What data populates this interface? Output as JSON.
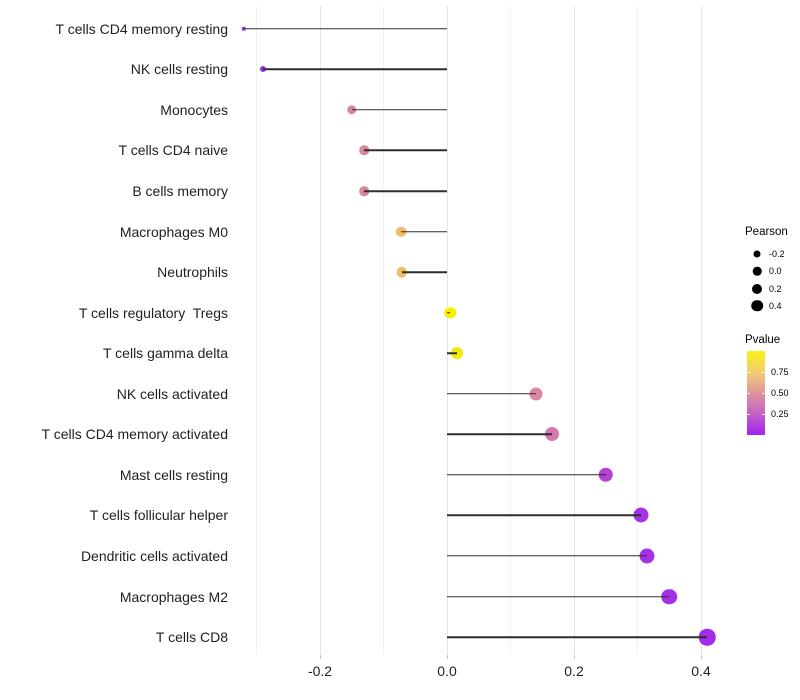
{
  "chart_data": {
    "type": "scatter",
    "subtype": "lollipop",
    "orientation": "horizontal",
    "title": "",
    "xlabel": "",
    "ylabel": "",
    "xlim": [
      -0.335,
      0.42
    ],
    "grid": "vertical-only",
    "x_axis": {
      "major_tick_labels": [
        "-0.2",
        "0.0",
        "0.2",
        "0.4"
      ],
      "major_tick_values": [
        -0.2,
        0.0,
        0.2,
        0.4
      ],
      "minor_tick_values": [
        -0.3,
        -0.1,
        0.1,
        0.3
      ]
    },
    "points": [
      {
        "label": "T cells CD4 memory resting",
        "pearson": -0.32,
        "color": "#9B2ED9",
        "size": 4.5
      },
      {
        "label": "NK cells resting",
        "pearson": -0.29,
        "color": "#992EDB",
        "size": 6
      },
      {
        "label": "Monocytes",
        "pearson": -0.15,
        "color": "#D9879B",
        "size": 9.5
      },
      {
        "label": "T cells CD4 naive",
        "pearson": -0.13,
        "color": "#DA899B",
        "size": 9.5
      },
      {
        "label": "B cells memory",
        "pearson": -0.13,
        "color": "#D9879B",
        "size": 9.5
      },
      {
        "label": "Macrophages M0",
        "pearson": -0.072,
        "color": "#EFBF66",
        "size": 10.5
      },
      {
        "label": "Neutrophils",
        "pearson": -0.071,
        "color": "#EFBE62",
        "size": 10.5
      },
      {
        "label": "T cells regulatory  Tregs",
        "pearson": 0.005,
        "color": "#F4F000",
        "size": 11.5
      },
      {
        "label": "T cells gamma delta",
        "pearson": 0.015,
        "color": "#F2EC05",
        "size": 12
      },
      {
        "label": "NK cells activated",
        "pearson": 0.14,
        "color": "#DB86A2",
        "size": 13
      },
      {
        "label": "T cells CD4 memory activated",
        "pearson": 0.165,
        "color": "#D677AC",
        "size": 14
      },
      {
        "label": "Mast cells resting",
        "pearson": 0.25,
        "color": "#B440D6",
        "size": 14.5
      },
      {
        "label": "T cells follicular helper",
        "pearson": 0.305,
        "color": "#A533E4",
        "size": 15
      },
      {
        "label": "Dendritic cells activated",
        "pearson": 0.315,
        "color": "#A431E6",
        "size": 15
      },
      {
        "label": "Macrophages M2",
        "pearson": 0.35,
        "color": "#A32FE7",
        "size": 15.5
      },
      {
        "label": "T cells CD8",
        "pearson": 0.41,
        "color": "#A32CE8",
        "size": 16.5
      }
    ],
    "legend_size": {
      "title": "Pearson",
      "dot_color": "#000000",
      "entries": [
        {
          "label": "-0.2",
          "diameter": 7
        },
        {
          "label": "0.0",
          "diameter": 8.5
        },
        {
          "label": "0.2",
          "diameter": 10
        },
        {
          "label": "0.4",
          "diameter": 11.5
        }
      ]
    },
    "legend_color": {
      "title": "Pvalue",
      "tick_labels": [
        "0.75",
        "0.50",
        "0.25"
      ],
      "gradient_top_to_bottom": [
        "#FAF118",
        "#F0C87A",
        "#DE9699",
        "#C767C1",
        "#A322F2"
      ]
    }
  },
  "style_colors": {
    "segment": "#2E2E2E",
    "grid_major": "#E6E6E6",
    "grid_minor": "#F2F2F2",
    "axis_text": "#1F1F1F",
    "background": "#FFFFFF"
  }
}
